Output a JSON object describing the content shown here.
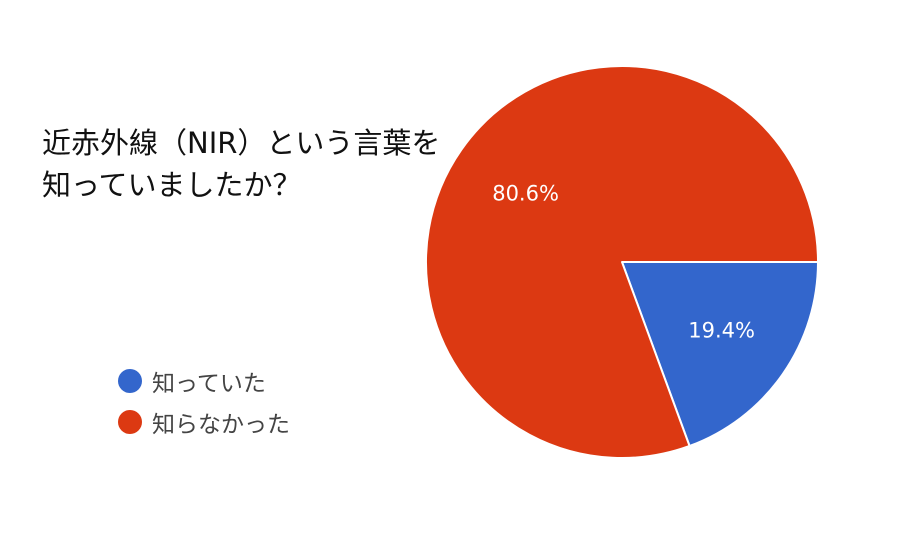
{
  "chart_data": {
    "type": "pie",
    "title_lines": [
      "近赤外線（NIR）という言葉を",
      "知っていましたか？"
    ],
    "categories": [
      "知っていた",
      "知らなかった"
    ],
    "values": [
      19.4,
      80.6
    ],
    "data_labels": [
      "19.4%",
      "80.6%"
    ],
    "colors": [
      "#3366cc",
      "#dc3912"
    ],
    "legend_position": "left-bottom"
  }
}
